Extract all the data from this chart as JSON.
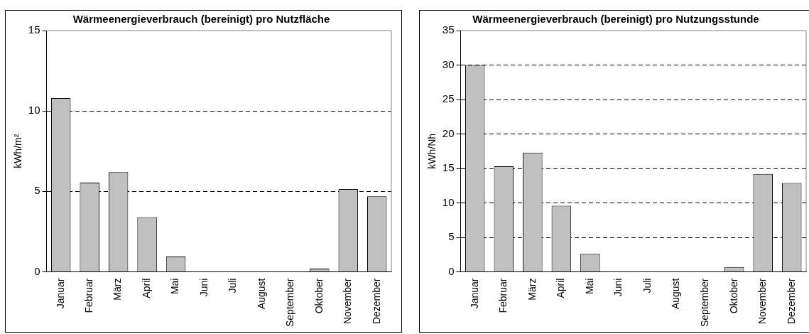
{
  "chart_data": [
    {
      "type": "bar",
      "title": "Wärmeenergieverbrauch (bereinigt) pro Nutzfläche",
      "ylabel": "kWh/m²",
      "categories": [
        "Januar",
        "Februar",
        "März",
        "April",
        "Mai",
        "Juni",
        "Juli",
        "August",
        "September",
        "Oktober",
        "November",
        "Dezember"
      ],
      "values": [
        10.8,
        5.55,
        6.2,
        3.4,
        0.95,
        0,
        0,
        0,
        0,
        0.2,
        5.15,
        4.7
      ],
      "color": "#c0c0c0",
      "ylim": [
        0,
        15
      ],
      "yticks": [
        0,
        5,
        10,
        15
      ],
      "grid": "y"
    },
    {
      "type": "bar",
      "title": "Wärmeenergieverbrauch (bereinigt) pro Nutzungsstunde",
      "ylabel": "kWh/Nh",
      "categories": [
        "Januar",
        "Februar",
        "März",
        "April",
        "Mai",
        "Juni",
        "Juli",
        "August",
        "September",
        "Oktober",
        "November",
        "Dezember"
      ],
      "values": [
        30,
        15.3,
        17.3,
        9.6,
        2.6,
        0,
        0,
        0,
        0,
        0.7,
        14.2,
        12.9
      ],
      "color": "#c0c0c0",
      "ylim": [
        0,
        35
      ],
      "yticks": [
        0,
        5,
        10,
        15,
        20,
        25,
        30,
        35
      ],
      "grid": "y"
    }
  ]
}
